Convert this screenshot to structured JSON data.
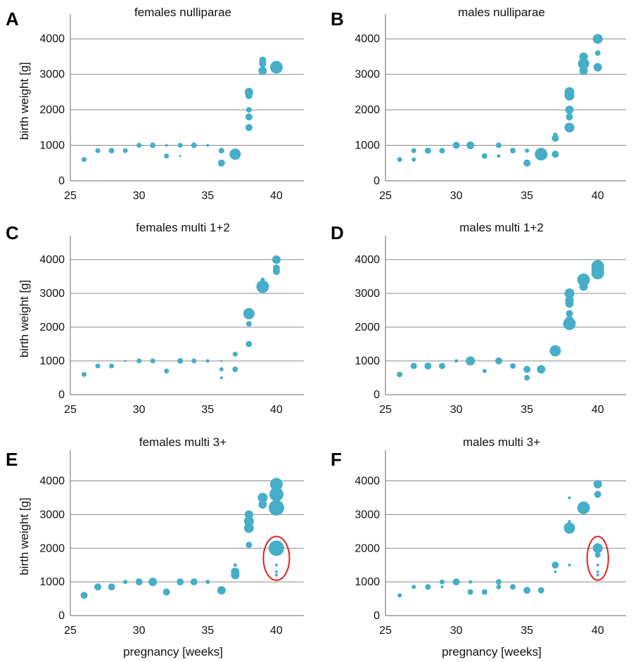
{
  "colors": {
    "bubble": "#46aec8",
    "highlight": "#e02020",
    "axis": "#6a6a6a",
    "grid": "#8a8a8a"
  },
  "chart_data": [
    {
      "type": "scatter",
      "panel": "A",
      "title": "females nulliparae",
      "xlabel": "",
      "ylabel": "birth weight [g]",
      "xlim": [
        25,
        42
      ],
      "ylim": [
        0,
        4500
      ],
      "xticks": [
        25,
        30,
        35,
        40
      ],
      "yticks": [
        0,
        1000,
        2000,
        3000,
        4000
      ],
      "grid": true,
      "points": [
        {
          "x": 26,
          "y": 600,
          "r": 3.5
        },
        {
          "x": 27,
          "y": 850,
          "r": 3.5
        },
        {
          "x": 28,
          "y": 850,
          "r": 4
        },
        {
          "x": 29,
          "y": 850,
          "r": 3.5
        },
        {
          "x": 30,
          "y": 1000,
          "r": 3.5
        },
        {
          "x": 31,
          "y": 1000,
          "r": 4
        },
        {
          "x": 32,
          "y": 1000,
          "r": 2
        },
        {
          "x": 32,
          "y": 700,
          "r": 3.5
        },
        {
          "x": 33,
          "y": 1000,
          "r": 3.5
        },
        {
          "x": 33,
          "y": 700,
          "r": 1.5
        },
        {
          "x": 34,
          "y": 1000,
          "r": 4
        },
        {
          "x": 35,
          "y": 1000,
          "r": 2
        },
        {
          "x": 36,
          "y": 850,
          "r": 4
        },
        {
          "x": 36,
          "y": 500,
          "r": 5
        },
        {
          "x": 37,
          "y": 750,
          "r": 8
        },
        {
          "x": 38,
          "y": 1500,
          "r": 5
        },
        {
          "x": 38,
          "y": 1800,
          "r": 5
        },
        {
          "x": 38,
          "y": 2000,
          "r": 4
        },
        {
          "x": 38,
          "y": 2400,
          "r": 5
        },
        {
          "x": 38,
          "y": 2500,
          "r": 6
        },
        {
          "x": 39,
          "y": 3100,
          "r": 6
        },
        {
          "x": 39,
          "y": 3300,
          "r": 5
        },
        {
          "x": 39,
          "y": 3400,
          "r": 5
        },
        {
          "x": 40,
          "y": 3200,
          "r": 9
        }
      ],
      "highlight": null
    },
    {
      "type": "scatter",
      "panel": "B",
      "title": "males nulliparae",
      "xlabel": "",
      "ylabel": "",
      "xlim": [
        25,
        42
      ],
      "ylim": [
        0,
        4500
      ],
      "xticks": [
        25,
        30,
        35,
        40
      ],
      "yticks": [
        0,
        1000,
        2000,
        3000,
        4000
      ],
      "grid": true,
      "points": [
        {
          "x": 26,
          "y": 600,
          "r": 3.5
        },
        {
          "x": 27,
          "y": 850,
          "r": 3.5
        },
        {
          "x": 27,
          "y": 600,
          "r": 3
        },
        {
          "x": 28,
          "y": 850,
          "r": 4.5
        },
        {
          "x": 29,
          "y": 850,
          "r": 4
        },
        {
          "x": 30,
          "y": 1000,
          "r": 5
        },
        {
          "x": 31,
          "y": 1000,
          "r": 5.5
        },
        {
          "x": 32,
          "y": 700,
          "r": 4
        },
        {
          "x": 33,
          "y": 1000,
          "r": 4
        },
        {
          "x": 33,
          "y": 700,
          "r": 2.5
        },
        {
          "x": 34,
          "y": 850,
          "r": 4
        },
        {
          "x": 35,
          "y": 850,
          "r": 3
        },
        {
          "x": 35,
          "y": 500,
          "r": 5
        },
        {
          "x": 36,
          "y": 750,
          "r": 9
        },
        {
          "x": 37,
          "y": 750,
          "r": 5
        },
        {
          "x": 37,
          "y": 1200,
          "r": 5
        },
        {
          "x": 37,
          "y": 1300,
          "r": 3
        },
        {
          "x": 38,
          "y": 1500,
          "r": 7
        },
        {
          "x": 38,
          "y": 1800,
          "r": 5
        },
        {
          "x": 38,
          "y": 2000,
          "r": 6
        },
        {
          "x": 38,
          "y": 2400,
          "r": 7
        },
        {
          "x": 38,
          "y": 2500,
          "r": 7
        },
        {
          "x": 39,
          "y": 3100,
          "r": 6
        },
        {
          "x": 39,
          "y": 3300,
          "r": 8
        },
        {
          "x": 39,
          "y": 3500,
          "r": 6
        },
        {
          "x": 40,
          "y": 3200,
          "r": 6
        },
        {
          "x": 40,
          "y": 3600,
          "r": 4
        },
        {
          "x": 40,
          "y": 4000,
          "r": 7
        }
      ],
      "highlight": null
    },
    {
      "type": "scatter",
      "panel": "C",
      "title": "females multi 1+2",
      "xlabel": "",
      "ylabel": "birth weight [g]",
      "xlim": [
        25,
        42
      ],
      "ylim": [
        0,
        4500
      ],
      "xticks": [
        25,
        30,
        35,
        40
      ],
      "yticks": [
        0,
        1000,
        2000,
        3000,
        4000
      ],
      "grid": true,
      "points": [
        {
          "x": 26,
          "y": 600,
          "r": 3.5
        },
        {
          "x": 27,
          "y": 850,
          "r": 3.5
        },
        {
          "x": 28,
          "y": 850,
          "r": 3.5
        },
        {
          "x": 29,
          "y": 1000,
          "r": 1.5
        },
        {
          "x": 30,
          "y": 1000,
          "r": 3.5
        },
        {
          "x": 31,
          "y": 1000,
          "r": 3.5
        },
        {
          "x": 32,
          "y": 700,
          "r": 3.5
        },
        {
          "x": 33,
          "y": 1000,
          "r": 4
        },
        {
          "x": 34,
          "y": 1000,
          "r": 3.5
        },
        {
          "x": 35,
          "y": 1000,
          "r": 2.5
        },
        {
          "x": 36,
          "y": 1000,
          "r": 1.5
        },
        {
          "x": 36,
          "y": 750,
          "r": 3
        },
        {
          "x": 36,
          "y": 500,
          "r": 2
        },
        {
          "x": 37,
          "y": 750,
          "r": 4
        },
        {
          "x": 37,
          "y": 1200,
          "r": 3.5
        },
        {
          "x": 38,
          "y": 1500,
          "r": 4.5
        },
        {
          "x": 38,
          "y": 2100,
          "r": 4
        },
        {
          "x": 38,
          "y": 2400,
          "r": 8
        },
        {
          "x": 39,
          "y": 3200,
          "r": 9
        },
        {
          "x": 39,
          "y": 3400,
          "r": 3
        },
        {
          "x": 40,
          "y": 3650,
          "r": 5
        },
        {
          "x": 40,
          "y": 3750,
          "r": 5
        },
        {
          "x": 40,
          "y": 4000,
          "r": 6
        }
      ],
      "highlight": null
    },
    {
      "type": "scatter",
      "panel": "D",
      "title": "males multi 1+2",
      "xlabel": "",
      "ylabel": "",
      "xlim": [
        25,
        42
      ],
      "ylim": [
        0,
        4500
      ],
      "xticks": [
        25,
        30,
        35,
        40
      ],
      "yticks": [
        0,
        1000,
        2000,
        3000,
        4000
      ],
      "grid": true,
      "points": [
        {
          "x": 26,
          "y": 600,
          "r": 4
        },
        {
          "x": 27,
          "y": 850,
          "r": 4.5
        },
        {
          "x": 28,
          "y": 850,
          "r": 5
        },
        {
          "x": 29,
          "y": 850,
          "r": 4.5
        },
        {
          "x": 30,
          "y": 1000,
          "r": 2.5
        },
        {
          "x": 31,
          "y": 1000,
          "r": 6.5
        },
        {
          "x": 32,
          "y": 700,
          "r": 3
        },
        {
          "x": 33,
          "y": 1000,
          "r": 5
        },
        {
          "x": 34,
          "y": 850,
          "r": 4
        },
        {
          "x": 35,
          "y": 750,
          "r": 5
        },
        {
          "x": 35,
          "y": 500,
          "r": 4
        },
        {
          "x": 36,
          "y": 750,
          "r": 6
        },
        {
          "x": 37,
          "y": 1300,
          "r": 8
        },
        {
          "x": 38,
          "y": 2100,
          "r": 9
        },
        {
          "x": 38,
          "y": 2200,
          "r": 6
        },
        {
          "x": 38,
          "y": 2400,
          "r": 5
        },
        {
          "x": 38,
          "y": 2700,
          "r": 6
        },
        {
          "x": 38,
          "y": 2800,
          "r": 6
        },
        {
          "x": 38,
          "y": 3000,
          "r": 7
        },
        {
          "x": 39,
          "y": 3200,
          "r": 6
        },
        {
          "x": 39,
          "y": 3400,
          "r": 9
        },
        {
          "x": 40,
          "y": 3600,
          "r": 9
        },
        {
          "x": 40,
          "y": 3700,
          "r": 9
        },
        {
          "x": 40,
          "y": 3800,
          "r": 9
        }
      ],
      "highlight": null
    },
    {
      "type": "scatter",
      "panel": "E",
      "title": "females multi 3+",
      "xlabel": "pregnancy [weeks]",
      "ylabel": "birth weight [g]",
      "xlim": [
        25,
        42
      ],
      "ylim": [
        0,
        4700
      ],
      "xticks": [
        25,
        30,
        35,
        40
      ],
      "yticks": [
        0,
        1000,
        2000,
        3000,
        4000
      ],
      "grid": true,
      "points": [
        {
          "x": 26,
          "y": 600,
          "r": 5
        },
        {
          "x": 27,
          "y": 850,
          "r": 5
        },
        {
          "x": 28,
          "y": 850,
          "r": 5
        },
        {
          "x": 29,
          "y": 1000,
          "r": 3
        },
        {
          "x": 30,
          "y": 1000,
          "r": 5
        },
        {
          "x": 31,
          "y": 1000,
          "r": 6
        },
        {
          "x": 32,
          "y": 700,
          "r": 5
        },
        {
          "x": 33,
          "y": 1000,
          "r": 5
        },
        {
          "x": 34,
          "y": 1000,
          "r": 5
        },
        {
          "x": 35,
          "y": 1000,
          "r": 3
        },
        {
          "x": 36,
          "y": 750,
          "r": 6
        },
        {
          "x": 37,
          "y": 1200,
          "r": 6
        },
        {
          "x": 37,
          "y": 1300,
          "r": 6
        },
        {
          "x": 37,
          "y": 1500,
          "r": 2.5
        },
        {
          "x": 38,
          "y": 2100,
          "r": 4.5
        },
        {
          "x": 38,
          "y": 2600,
          "r": 7
        },
        {
          "x": 38,
          "y": 2800,
          "r": 7
        },
        {
          "x": 38,
          "y": 3000,
          "r": 6
        },
        {
          "x": 39,
          "y": 3300,
          "r": 6
        },
        {
          "x": 39,
          "y": 3500,
          "r": 7
        },
        {
          "x": 40,
          "y": 1200,
          "r": 2
        },
        {
          "x": 40,
          "y": 1300,
          "r": 2
        },
        {
          "x": 40,
          "y": 1500,
          "r": 2
        },
        {
          "x": 40,
          "y": 2000,
          "r": 11
        },
        {
          "x": 40,
          "y": 3200,
          "r": 11
        },
        {
          "x": 40,
          "y": 3600,
          "r": 10
        },
        {
          "x": 40,
          "y": 3900,
          "r": 9
        }
      ],
      "highlight": {
        "x": 40,
        "y": 1700,
        "rx_weeks": 0.95,
        "ry_grams": 650
      }
    },
    {
      "type": "scatter",
      "panel": "F",
      "title": "males multi 3+",
      "xlabel": "pregnancy [weeks]",
      "ylabel": "",
      "xlim": [
        25,
        42
      ],
      "ylim": [
        0,
        4700
      ],
      "xticks": [
        25,
        30,
        35,
        40
      ],
      "yticks": [
        0,
        1000,
        2000,
        3000,
        4000
      ],
      "grid": true,
      "points": [
        {
          "x": 26,
          "y": 600,
          "r": 3
        },
        {
          "x": 27,
          "y": 850,
          "r": 3
        },
        {
          "x": 28,
          "y": 850,
          "r": 4
        },
        {
          "x": 29,
          "y": 1000,
          "r": 3.5
        },
        {
          "x": 29,
          "y": 850,
          "r": 2
        },
        {
          "x": 30,
          "y": 1000,
          "r": 5
        },
        {
          "x": 31,
          "y": 1000,
          "r": 2.5
        },
        {
          "x": 31,
          "y": 700,
          "r": 4
        },
        {
          "x": 32,
          "y": 700,
          "r": 4
        },
        {
          "x": 33,
          "y": 1000,
          "r": 4
        },
        {
          "x": 33,
          "y": 850,
          "r": 3.5
        },
        {
          "x": 34,
          "y": 850,
          "r": 4
        },
        {
          "x": 35,
          "y": 750,
          "r": 5
        },
        {
          "x": 36,
          "y": 750,
          "r": 4.5
        },
        {
          "x": 37,
          "y": 1500,
          "r": 5
        },
        {
          "x": 37,
          "y": 1300,
          "r": 2
        },
        {
          "x": 38,
          "y": 1500,
          "r": 2
        },
        {
          "x": 38,
          "y": 2600,
          "r": 8
        },
        {
          "x": 38,
          "y": 2800,
          "r": 2
        },
        {
          "x": 38,
          "y": 3500,
          "r": 2
        },
        {
          "x": 39,
          "y": 3200,
          "r": 9
        },
        {
          "x": 40,
          "y": 1200,
          "r": 2
        },
        {
          "x": 40,
          "y": 1300,
          "r": 2
        },
        {
          "x": 40,
          "y": 1500,
          "r": 2
        },
        {
          "x": 40,
          "y": 1800,
          "r": 4
        },
        {
          "x": 40,
          "y": 2000,
          "r": 7
        },
        {
          "x": 40,
          "y": 3600,
          "r": 5
        },
        {
          "x": 40,
          "y": 3900,
          "r": 6
        }
      ],
      "highlight": {
        "x": 40,
        "y": 1700,
        "rx_weeks": 0.75,
        "ry_grams": 650
      }
    }
  ]
}
